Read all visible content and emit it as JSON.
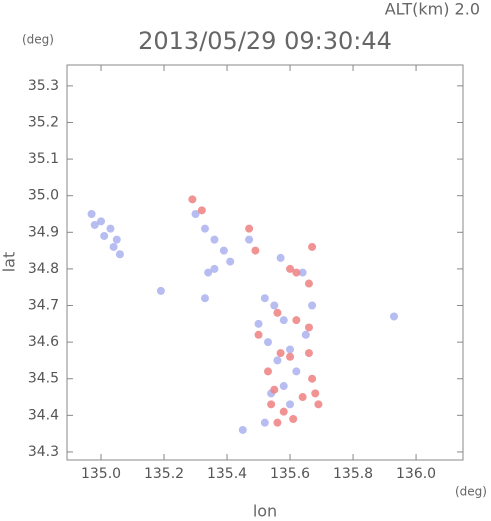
{
  "altitude_label": "ALT(km) 2.0",
  "chart_data": {
    "type": "scatter",
    "title": "2013/05/29 09:30:44",
    "ylabel": "lat",
    "yunit": "(deg)",
    "xlabel": "lon",
    "xunit": "(deg)",
    "xlim": [
      134.892,
      136.149
    ],
    "ylim": [
      34.278,
      35.357
    ],
    "xticks": [
      {
        "value": 135,
        "label": "135.0"
      },
      135.2,
      135.4,
      135.6,
      135.8,
      {
        "value": 136,
        "label": "136.0"
      }
    ],
    "yticks": [
      34.3,
      34.4,
      34.5,
      34.6,
      34.7,
      34.8,
      34.9,
      {
        "value": 35,
        "label": "35.0"
      },
      35.1,
      35.2,
      35.3
    ],
    "series": [
      {
        "color": "#aab0ee",
        "x": [
          134.97,
          135.0,
          135.03,
          135.05,
          135.04,
          134.98,
          135.01,
          135.3,
          135.33,
          135.36,
          135.39,
          135.41,
          135.36,
          135.34,
          135.19,
          135.33,
          135.06,
          135.52,
          135.55,
          135.5,
          135.58,
          135.53,
          135.6,
          135.56,
          135.62,
          135.58,
          135.54,
          135.6,
          135.65,
          135.64,
          135.57,
          135.47,
          135.93,
          135.45,
          135.52,
          135.67
        ],
        "values": [
          34.95,
          34.93,
          34.91,
          34.88,
          34.86,
          34.92,
          34.89,
          34.95,
          34.91,
          34.88,
          34.85,
          34.82,
          34.8,
          34.79,
          34.74,
          34.72,
          34.84,
          34.72,
          34.7,
          34.65,
          34.66,
          34.6,
          34.58,
          34.55,
          34.52,
          34.48,
          34.46,
          34.43,
          34.62,
          34.79,
          34.83,
          34.88,
          34.67,
          34.36,
          34.38,
          34.7
        ]
      },
      {
        "color": "#ee8080",
        "x": [
          135.29,
          135.32,
          135.47,
          135.49,
          135.62,
          135.6,
          135.66,
          135.67,
          135.56,
          135.62,
          135.5,
          135.57,
          135.66,
          135.6,
          135.53,
          135.55,
          135.67,
          135.68,
          135.69,
          135.64,
          135.58,
          135.61,
          135.56,
          135.54,
          135.66
        ],
        "values": [
          34.99,
          34.96,
          34.91,
          34.85,
          34.79,
          34.8,
          34.76,
          34.86,
          34.68,
          34.66,
          34.62,
          34.57,
          34.64,
          34.56,
          34.52,
          34.47,
          34.5,
          34.46,
          34.43,
          34.45,
          34.41,
          34.39,
          34.38,
          34.43,
          34.57
        ]
      }
    ]
  }
}
